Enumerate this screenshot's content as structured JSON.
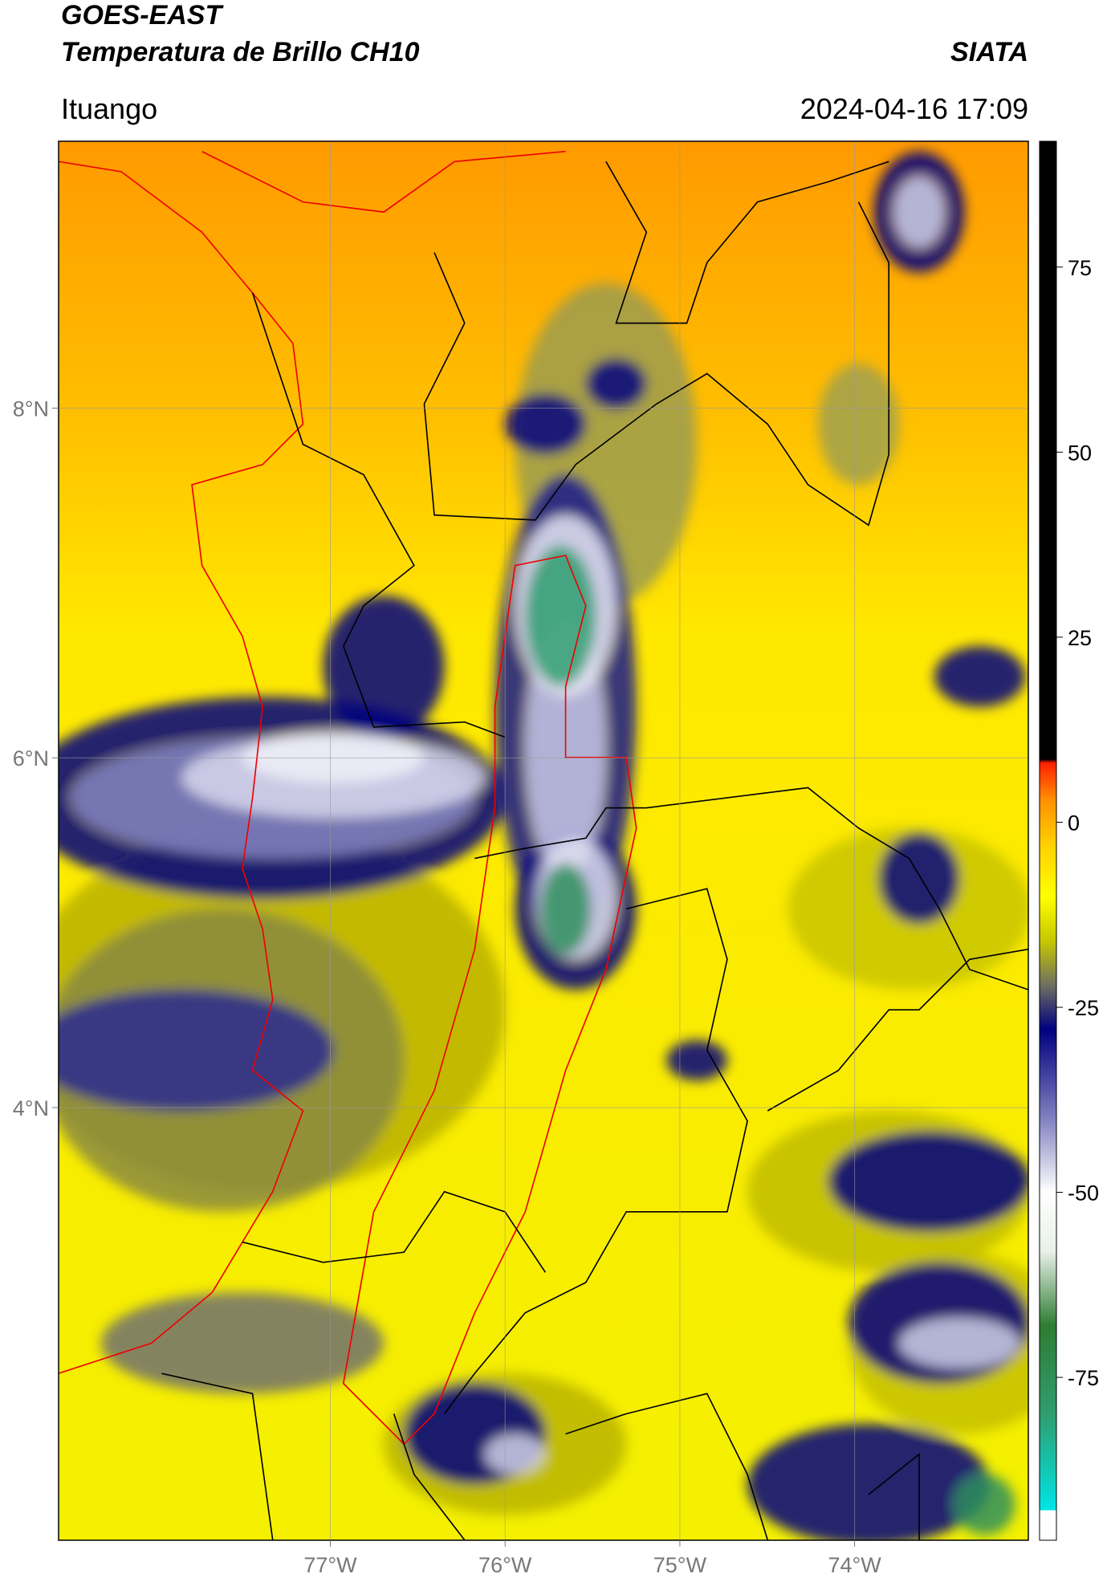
{
  "chart_data": {
    "type": "map",
    "title": "GOES-EAST",
    "subtitle": "Temperatura de Brillo CH10",
    "source": "SIATA",
    "location": "Ituango",
    "timestamp": "2024-04-16 17:09",
    "xlim": [
      -78.555,
      -73.006
    ],
    "ylim": [
      1.526,
      9.526
    ],
    "xticks": [
      {
        "value": -77,
        "label": "77°W"
      },
      {
        "value": -76,
        "label": "76°W"
      },
      {
        "value": -75,
        "label": "75°W"
      },
      {
        "value": -74,
        "label": "74°W"
      }
    ],
    "yticks": [
      {
        "value": 8,
        "label": "8°N"
      },
      {
        "value": 6,
        "label": "6°N"
      },
      {
        "value": 4,
        "label": "4°N"
      }
    ],
    "grid": true,
    "clim": [
      -97,
      92
    ],
    "cticks": [
      75,
      50,
      25,
      0,
      -25,
      -50,
      -75
    ],
    "colormap": [
      {
        "value": -97,
        "color": "#ffffff"
      },
      {
        "value": -93,
        "color": "#ffffff"
      },
      {
        "value": -92.9,
        "color": "#00e5e5"
      },
      {
        "value": -80,
        "color": "#2e9e70"
      },
      {
        "value": -68,
        "color": "#2e7d32"
      },
      {
        "value": -58,
        "color": "#e8f0e8"
      },
      {
        "value": -50,
        "color": "#ffffff"
      },
      {
        "value": -40,
        "color": "#8080c0"
      },
      {
        "value": -28,
        "color": "#000080"
      },
      {
        "value": -22,
        "color": "#707060"
      },
      {
        "value": -16,
        "color": "#c8c800"
      },
      {
        "value": -10,
        "color": "#ffff00"
      },
      {
        "value": -3,
        "color": "#ffd000"
      },
      {
        "value": 3,
        "color": "#ff9000"
      },
      {
        "value": 8,
        "color": "#ff2000"
      },
      {
        "value": 8.5,
        "color": "#000000"
      },
      {
        "value": 92,
        "color": "#000000"
      }
    ]
  }
}
